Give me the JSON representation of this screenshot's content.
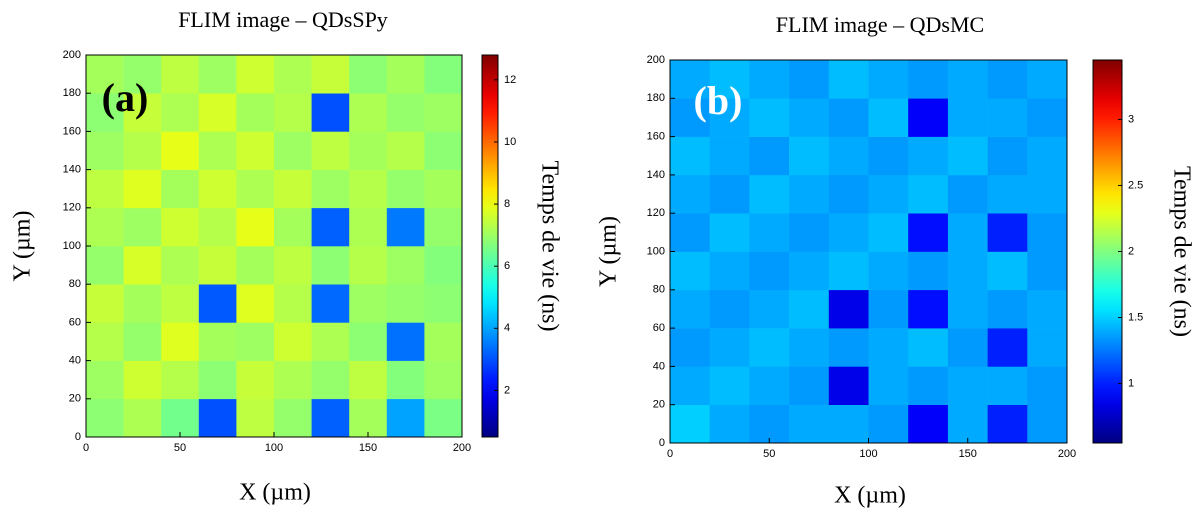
{
  "chart_data": [
    {
      "type": "heatmap",
      "title": "FLIM image – QDsSPy",
      "annotation": "(a)",
      "annotation_color": "#000000",
      "x_label": "X (µm)",
      "y_label": "Y (µm)",
      "colorbar_label": "Temps de vie (ns)",
      "colormap": "jet",
      "xlim": [
        0,
        200
      ],
      "ylim": [
        0,
        200
      ],
      "xticks": [
        0,
        50,
        100,
        150,
        200
      ],
      "yticks": [
        0,
        20,
        40,
        60,
        80,
        100,
        120,
        140,
        160,
        180,
        200
      ],
      "clim": [
        0.5,
        12.8
      ],
      "cticks": [
        2,
        4,
        6,
        8,
        10,
        12
      ],
      "xbins": [
        0,
        20,
        40,
        60,
        80,
        100,
        120,
        140,
        160,
        180,
        200
      ],
      "ybins": [
        0,
        20,
        40,
        60,
        80,
        100,
        120,
        140,
        160,
        180,
        200
      ],
      "z": [
        [
          6.8,
          7.2,
          6.5,
          3.0,
          7.4,
          6.9,
          3.2,
          7.1,
          4.0,
          6.6
        ],
        [
          7.0,
          7.6,
          7.3,
          6.8,
          7.5,
          7.2,
          6.9,
          7.4,
          6.7,
          7.0
        ],
        [
          7.3,
          6.9,
          7.8,
          7.1,
          7.0,
          7.6,
          7.2,
          6.8,
          3.4,
          7.1
        ],
        [
          7.5,
          7.1,
          7.4,
          3.1,
          7.8,
          7.3,
          3.3,
          7.0,
          6.9,
          6.8
        ],
        [
          6.9,
          7.7,
          7.2,
          7.5,
          7.1,
          7.4,
          6.8,
          7.3,
          7.0,
          6.7
        ],
        [
          7.2,
          7.0,
          7.6,
          7.3,
          7.9,
          7.1,
          3.2,
          7.2,
          3.5,
          6.9
        ],
        [
          7.4,
          7.8,
          7.1,
          7.6,
          7.2,
          7.5,
          7.0,
          7.3,
          6.9,
          7.1
        ],
        [
          7.0,
          7.3,
          7.9,
          7.2,
          7.6,
          7.0,
          7.4,
          7.1,
          7.3,
          6.8
        ],
        [
          6.8,
          7.5,
          7.2,
          7.7,
          7.1,
          7.3,
          3.0,
          7.2,
          6.9,
          7.0
        ],
        [
          7.1,
          6.9,
          7.4,
          7.0,
          7.6,
          7.2,
          7.5,
          6.8,
          7.1,
          6.7
        ]
      ]
    },
    {
      "type": "heatmap",
      "title": "FLIM image – QDsMC",
      "annotation": "(b)",
      "annotation_color": "#ffffff",
      "x_label": "X (µm)",
      "y_label": "Y (µm)",
      "colorbar_label": "Temps de vie (ns)",
      "colormap": "jet",
      "xlim": [
        0,
        200
      ],
      "ylim": [
        0,
        200
      ],
      "xticks": [
        0,
        50,
        100,
        150,
        200
      ],
      "yticks": [
        0,
        20,
        40,
        60,
        80,
        100,
        120,
        140,
        160,
        180,
        200
      ],
      "clim": [
        0.55,
        3.45
      ],
      "cticks": [
        1,
        1.5,
        2,
        2.5,
        3
      ],
      "xbins": [
        0,
        20,
        40,
        60,
        80,
        100,
        120,
        140,
        160,
        180,
        200
      ],
      "ybins": [
        0,
        20,
        40,
        60,
        80,
        100,
        120,
        140,
        160,
        180,
        200
      ],
      "z": [
        [
          1.5,
          1.4,
          1.35,
          1.4,
          1.4,
          1.35,
          0.9,
          1.4,
          1.0,
          1.35
        ],
        [
          1.4,
          1.45,
          1.4,
          1.35,
          0.85,
          1.4,
          1.35,
          1.4,
          1.4,
          1.35
        ],
        [
          1.35,
          1.4,
          1.45,
          1.4,
          1.35,
          1.4,
          1.45,
          1.35,
          1.0,
          1.4
        ],
        [
          1.4,
          1.35,
          1.4,
          1.45,
          0.85,
          1.35,
          0.95,
          1.4,
          1.35,
          1.4
        ],
        [
          1.45,
          1.4,
          1.35,
          1.4,
          1.45,
          1.4,
          1.35,
          1.4,
          1.45,
          1.35
        ],
        [
          1.35,
          1.45,
          1.4,
          1.35,
          1.4,
          1.45,
          0.95,
          1.4,
          1.0,
          1.35
        ],
        [
          1.4,
          1.35,
          1.45,
          1.4,
          1.35,
          1.4,
          1.45,
          1.35,
          1.4,
          1.4
        ],
        [
          1.45,
          1.4,
          1.35,
          1.45,
          1.4,
          1.35,
          1.4,
          1.45,
          1.35,
          1.4
        ],
        [
          1.35,
          1.4,
          1.45,
          1.4,
          1.35,
          1.45,
          0.9,
          1.4,
          1.4,
          1.35
        ],
        [
          1.4,
          1.45,
          1.4,
          1.35,
          1.45,
          1.4,
          1.35,
          1.4,
          1.35,
          1.4
        ]
      ]
    }
  ]
}
